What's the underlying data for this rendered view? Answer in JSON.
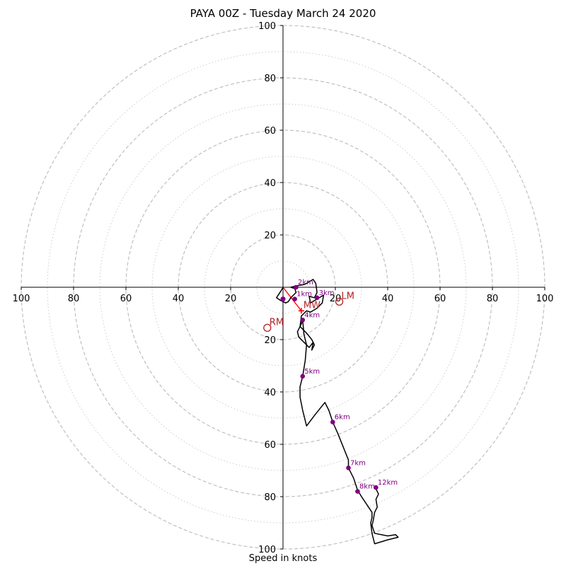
{
  "chart_data": {
    "type": "hodograph",
    "title": "PAYA 00Z - Tuesday March 24 2020",
    "xlabel": "Speed in knots",
    "range": [
      -100,
      100
    ],
    "rings_major": [
      20,
      40,
      60,
      80,
      100
    ],
    "rings_minor": [
      10,
      30,
      50,
      70,
      90
    ],
    "x_ticks": [
      {
        "value": -100,
        "label": "100"
      },
      {
        "value": -80,
        "label": "80"
      },
      {
        "value": -60,
        "label": "60"
      },
      {
        "value": -40,
        "label": "40"
      },
      {
        "value": -20,
        "label": "20"
      },
      {
        "value": 20,
        "label": "20"
      },
      {
        "value": 40,
        "label": "40"
      },
      {
        "value": 60,
        "label": "60"
      },
      {
        "value": 80,
        "label": "80"
      },
      {
        "value": 100,
        "label": "100"
      }
    ],
    "y_ticks": [
      {
        "value": 100,
        "label": "100"
      },
      {
        "value": 80,
        "label": "80"
      },
      {
        "value": 60,
        "label": "60"
      },
      {
        "value": 40,
        "label": "40"
      },
      {
        "value": 20,
        "label": "20"
      },
      {
        "value": -20,
        "label": "20"
      },
      {
        "value": -40,
        "label": "40"
      },
      {
        "value": -60,
        "label": "60"
      },
      {
        "value": -80,
        "label": "80"
      },
      {
        "value": -100,
        "label": "100"
      }
    ],
    "trace": [
      [
        0,
        0
      ],
      [
        -0.5,
        -1
      ],
      [
        -1.5,
        -2.5
      ],
      [
        -2.5,
        -4
      ],
      [
        -1,
        -5
      ],
      [
        1,
        -6
      ],
      [
        2,
        -5.5
      ],
      [
        3,
        -4
      ],
      [
        4,
        -3
      ],
      [
        5,
        -2
      ],
      [
        4.5,
        -0.5
      ],
      [
        3,
        0
      ],
      [
        5,
        0.5
      ],
      [
        8,
        1
      ],
      [
        9,
        1.5
      ],
      [
        11.5,
        3
      ],
      [
        12.5,
        1.5
      ],
      [
        13,
        -2
      ],
      [
        12,
        -4
      ],
      [
        10,
        -3.5
      ],
      [
        10.5,
        -6
      ],
      [
        13,
        -4.5
      ],
      [
        15.5,
        -3
      ],
      [
        15,
        -6
      ],
      [
        13,
        -8
      ],
      [
        10.5,
        -9.5
      ],
      [
        9,
        -9
      ],
      [
        8,
        -10
      ],
      [
        7,
        -11
      ],
      [
        6.5,
        -15
      ],
      [
        9,
        -17.5
      ],
      [
        11,
        -20
      ],
      [
        12,
        -22
      ],
      [
        11,
        -24
      ],
      [
        11.5,
        -21
      ],
      [
        10,
        -23
      ],
      [
        8,
        -21
      ],
      [
        6,
        -19
      ],
      [
        5.5,
        -17
      ],
      [
        7,
        -14
      ],
      [
        7.5,
        -12.5
      ],
      [
        8,
        -18
      ],
      [
        9,
        -22
      ],
      [
        8.5,
        -28
      ],
      [
        7.5,
        -34
      ],
      [
        6.5,
        -38
      ],
      [
        6.5,
        -42
      ],
      [
        7.5,
        -47
      ],
      [
        9,
        -53
      ],
      [
        12,
        -49
      ],
      [
        16,
        -44
      ],
      [
        17.5,
        -47
      ],
      [
        19,
        -51.5
      ],
      [
        21,
        -56
      ],
      [
        23,
        -61
      ],
      [
        25,
        -66
      ],
      [
        25,
        -69
      ],
      [
        27,
        -73
      ],
      [
        28.5,
        -77.5
      ],
      [
        30,
        -80
      ],
      [
        32,
        -83
      ],
      [
        34,
        -86
      ],
      [
        34,
        -88
      ],
      [
        33.5,
        -90
      ],
      [
        34,
        -94
      ],
      [
        35,
        -98
      ],
      [
        40,
        -96.5
      ],
      [
        44,
        -95.5
      ],
      [
        43,
        -94.5
      ],
      [
        40,
        -95
      ],
      [
        35,
        -94
      ],
      [
        34,
        -91
      ],
      [
        34.5,
        -89
      ],
      [
        35,
        -86
      ],
      [
        36,
        -84
      ],
      [
        35.5,
        -81
      ],
      [
        36.5,
        -79
      ],
      [
        35.5,
        -77
      ],
      [
        35.5,
        -76.5
      ]
    ],
    "height_markers": [
      {
        "label": "1km",
        "u": 4.5,
        "v": -4.5
      },
      {
        "label": "2km",
        "u": 5,
        "v": 0
      },
      {
        "label": "3km",
        "u": 13,
        "v": -4
      },
      {
        "label": "4km",
        "u": 7.5,
        "v": -12.5
      },
      {
        "label": "5km",
        "u": 7.5,
        "v": -34
      },
      {
        "label": "6km",
        "u": 19,
        "v": -51.5
      },
      {
        "label": "7km",
        "u": 25,
        "v": -69
      },
      {
        "label": "8km",
        "u": 28.5,
        "v": -78
      },
      {
        "label": "12km",
        "u": 35.5,
        "v": -76.5
      }
    ],
    "surface_point": {
      "label": "",
      "u": 0,
      "v": -4.5
    },
    "storm_motion": [
      {
        "label": "LM",
        "u": 21.5,
        "v": -5.5,
        "marker": "open-circle"
      },
      {
        "label": "MW",
        "u": 7,
        "v": -9,
        "marker": "plus"
      },
      {
        "label": "RM",
        "u": -6,
        "v": -15.5,
        "marker": "open-circle"
      }
    ],
    "shear_vector": {
      "from": [
        0,
        0
      ],
      "to": [
        7,
        -9
      ]
    },
    "colors": {
      "trace": "#000000",
      "height_markers": "#800080",
      "storm_motion": "#b22222",
      "shear_vector": "#ff0000",
      "grid_major": "#bbbbbb",
      "grid_minor": "#cccccc"
    }
  }
}
